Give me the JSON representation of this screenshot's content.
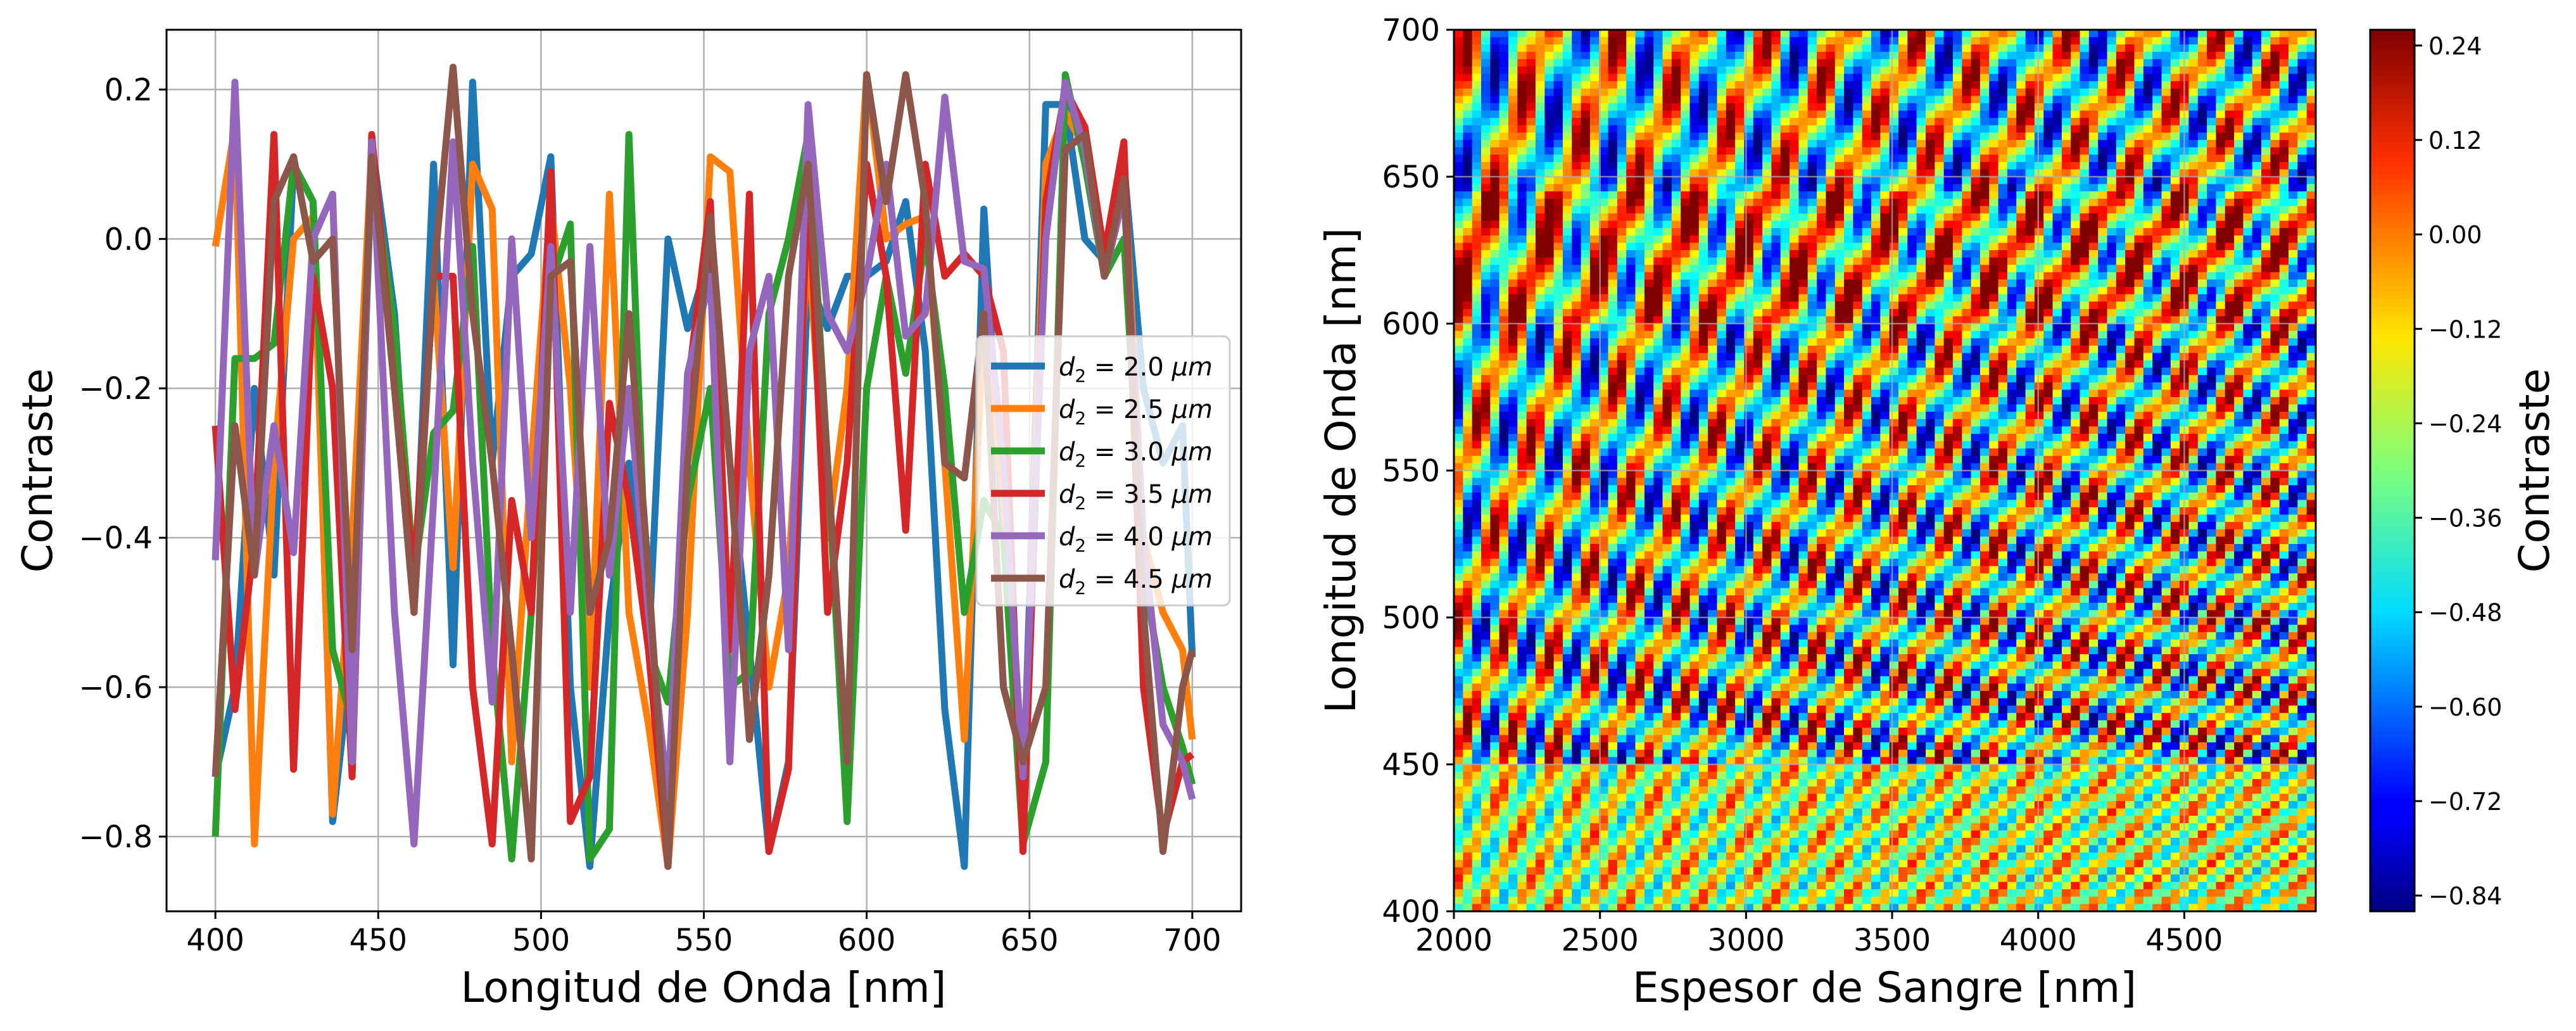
{
  "chart_data": [
    {
      "type": "line",
      "xlabel": "Longitud de Onda [nm]",
      "ylabel": "Contraste",
      "xlim": [
        385,
        715
      ],
      "ylim": [
        -0.9,
        0.28
      ],
      "xticks": [
        400,
        450,
        500,
        550,
        600,
        650,
        700
      ],
      "yticks": [
        0.2,
        0.0,
        -0.2,
        -0.4,
        -0.6,
        -0.8
      ],
      "xtick_labels": [
        "400",
        "450",
        "500",
        "550",
        "600",
        "650",
        "700"
      ],
      "ytick_labels": [
        "0.2",
        "0.0",
        "−0.2",
        "−0.4",
        "−0.6",
        "−0.8"
      ],
      "grid": true,
      "legend_position": "center-right",
      "x": [
        400,
        406,
        412,
        418,
        424,
        430,
        436,
        442,
        448,
        455,
        461,
        467,
        473,
        479,
        485,
        491,
        497,
        503,
        509,
        515,
        521,
        527,
        533,
        539,
        545,
        552,
        558,
        564,
        570,
        576,
        582,
        588,
        594,
        600,
        606,
        612,
        618,
        624,
        630,
        636,
        642,
        648,
        655,
        661,
        667,
        673,
        679,
        685,
        691,
        697,
        700
      ],
      "series": [
        {
          "name_base": "d",
          "name_sub": "2",
          "name_rest": " = 2.0 ",
          "name_unit": "μm",
          "color": "#1f77b4",
          "values": [
            -0.72,
            -0.6,
            -0.2,
            -0.45,
            0.1,
            0.05,
            -0.78,
            -0.55,
            0.13,
            -0.1,
            -0.5,
            0.1,
            -0.57,
            0.21,
            -0.3,
            -0.05,
            -0.02,
            0.11,
            -0.6,
            -0.84,
            -0.5,
            -0.3,
            -0.55,
            0.0,
            -0.12,
            -0.02,
            -0.3,
            -0.55,
            -0.82,
            -0.7,
            -0.05,
            -0.12,
            -0.05,
            -0.05,
            -0.03,
            0.05,
            -0.15,
            -0.63,
            -0.84,
            0.04,
            -0.4,
            -0.75,
            0.18,
            0.18,
            0.0,
            -0.03,
            0.1,
            -0.2,
            -0.3,
            -0.25,
            -0.56
          ]
        },
        {
          "name_base": "d",
          "name_sub": "2",
          "name_rest": " = 2.5 ",
          "name_unit": "μm",
          "color": "#ff7f0e",
          "values": [
            -0.01,
            0.15,
            -0.81,
            -0.3,
            0.0,
            0.03,
            -0.77,
            -0.4,
            0.12,
            -0.2,
            -0.5,
            -0.05,
            -0.44,
            0.1,
            0.04,
            -0.7,
            -0.3,
            0.05,
            -0.2,
            -0.6,
            0.06,
            -0.5,
            -0.65,
            -0.84,
            -0.5,
            0.11,
            0.09,
            -0.3,
            -0.6,
            -0.45,
            0.0,
            -0.4,
            -0.2,
            0.22,
            0.0,
            0.02,
            0.03,
            -0.3,
            -0.67,
            -0.1,
            -0.35,
            -0.76,
            0.1,
            0.17,
            0.12,
            -0.05,
            0.1,
            -0.4,
            -0.5,
            -0.55,
            -0.67
          ]
        },
        {
          "name_base": "d",
          "name_sub": "2",
          "name_rest": " = 3.0 ",
          "name_unit": "μm",
          "color": "#2ca02c",
          "values": [
            -0.8,
            -0.16,
            -0.16,
            -0.14,
            0.1,
            0.05,
            -0.55,
            -0.65,
            0.1,
            -0.12,
            -0.45,
            -0.26,
            -0.23,
            -0.01,
            -0.55,
            -0.83,
            -0.5,
            -0.06,
            0.02,
            -0.83,
            -0.79,
            0.14,
            -0.55,
            -0.62,
            -0.35,
            -0.2,
            -0.6,
            -0.58,
            -0.1,
            0.0,
            0.14,
            -0.3,
            -0.78,
            -0.2,
            -0.05,
            -0.18,
            0.0,
            -0.2,
            -0.5,
            -0.35,
            -0.4,
            -0.81,
            -0.7,
            0.22,
            0.1,
            -0.05,
            0.0,
            -0.45,
            -0.6,
            -0.68,
            -0.73
          ]
        },
        {
          "name_base": "d",
          "name_sub": "2",
          "name_rest": " = 3.5 ",
          "name_unit": "μm",
          "color": "#d62728",
          "values": [
            -0.25,
            -0.63,
            -0.4,
            0.14,
            -0.71,
            -0.05,
            -0.2,
            -0.72,
            0.14,
            -0.2,
            -0.45,
            -0.05,
            -0.05,
            -0.6,
            -0.81,
            -0.35,
            -0.5,
            0.09,
            -0.78,
            -0.72,
            -0.22,
            -0.35,
            -0.55,
            -0.84,
            -0.2,
            0.05,
            -0.55,
            0.06,
            -0.82,
            -0.71,
            0.1,
            -0.5,
            -0.3,
            0.1,
            -0.05,
            -0.39,
            0.1,
            -0.05,
            -0.02,
            -0.05,
            -0.15,
            -0.82,
            0.05,
            0.2,
            0.15,
            -0.02,
            0.13,
            -0.6,
            -0.8,
            -0.7,
            -0.69
          ]
        },
        {
          "name_base": "d",
          "name_sub": "2",
          "name_rest": " = 4.0 ",
          "name_unit": "μm",
          "color": "#9467bd",
          "values": [
            -0.43,
            0.21,
            -0.45,
            -0.25,
            -0.42,
            0.0,
            0.06,
            -0.7,
            0.13,
            -0.5,
            -0.81,
            -0.35,
            0.13,
            -0.3,
            -0.62,
            0.0,
            -0.4,
            -0.01,
            -0.5,
            -0.01,
            -0.45,
            -0.2,
            -0.5,
            -0.75,
            -0.18,
            -0.05,
            -0.7,
            -0.15,
            -0.05,
            -0.55,
            0.18,
            -0.1,
            -0.15,
            -0.05,
            0.1,
            -0.13,
            -0.1,
            0.19,
            -0.03,
            -0.04,
            -0.3,
            -0.72,
            0.0,
            0.21,
            0.12,
            -0.05,
            0.06,
            -0.4,
            -0.65,
            -0.7,
            -0.75
          ]
        },
        {
          "name_base": "d",
          "name_sub": "2",
          "name_rest": " = 4.5 ",
          "name_unit": "μm",
          "color": "#8c564b",
          "values": [
            -0.72,
            -0.25,
            -0.45,
            0.05,
            0.11,
            -0.03,
            0.0,
            -0.55,
            0.11,
            -0.2,
            -0.5,
            -0.05,
            0.23,
            -0.1,
            -0.3,
            -0.55,
            -0.83,
            -0.05,
            -0.03,
            -0.5,
            -0.4,
            -0.1,
            -0.45,
            -0.84,
            -0.3,
            0.03,
            -0.3,
            -0.67,
            -0.45,
            -0.05,
            0.1,
            -0.3,
            -0.7,
            0.22,
            0.05,
            0.22,
            0.05,
            -0.3,
            -0.32,
            -0.1,
            -0.6,
            -0.7,
            -0.6,
            0.12,
            0.14,
            -0.05,
            0.08,
            -0.5,
            -0.82,
            -0.6,
            -0.55
          ]
        }
      ]
    },
    {
      "type": "heatmap",
      "xlabel": "Espesor de Sangre [nm]",
      "ylabel": "Longitud de Onda [nm]",
      "xlim": [
        2000,
        4950
      ],
      "ylim": [
        400,
        700
      ],
      "xticks": [
        2000,
        2500,
        3000,
        3500,
        4000,
        4500
      ],
      "yticks": [
        400,
        450,
        500,
        550,
        600,
        650,
        700
      ],
      "xtick_labels": [
        "2000",
        "2500",
        "3000",
        "3500",
        "4000",
        "4500"
      ],
      "ytick_labels": [
        "400",
        "450",
        "500",
        "550",
        "600",
        "650",
        "700"
      ],
      "grid": true,
      "colormap": "jet",
      "colorbar": {
        "label": "Contraste",
        "range": [
          -0.86,
          0.26
        ],
        "ticks": [
          0.24,
          0.12,
          0.0,
          -0.12,
          -0.24,
          -0.36,
          -0.48,
          -0.6,
          -0.72,
          -0.84
        ],
        "tick_labels": [
          "0.24",
          "0.12",
          "0.00",
          "−0.12",
          "−0.24",
          "−0.36",
          "−0.48",
          "−0.60",
          "−0.72",
          "−0.84"
        ]
      }
    }
  ]
}
